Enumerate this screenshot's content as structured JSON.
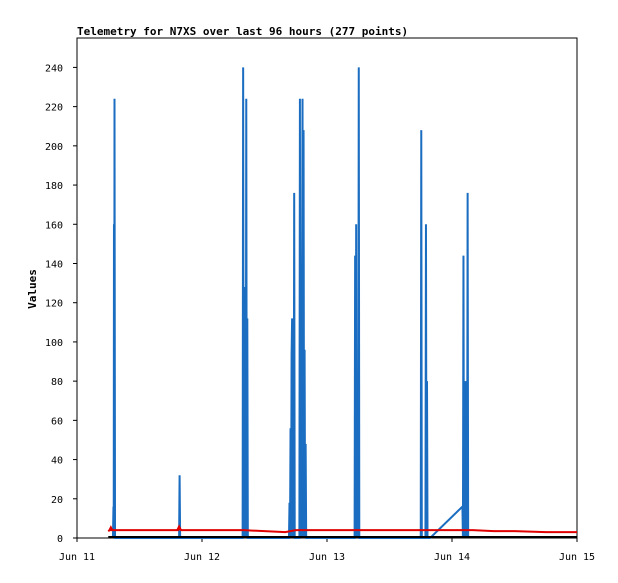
{
  "chart_data": {
    "type": "line",
    "title": "Telemetry for N7XS over last 96 hours (277 points)",
    "xlabel": "",
    "ylabel": "Values",
    "x_range": [
      "Jun 11 00:00",
      "Jun 15 00:00"
    ],
    "ylim": [
      0,
      255
    ],
    "y_ticks": [
      0,
      20,
      40,
      60,
      80,
      100,
      120,
      140,
      160,
      180,
      200,
      220,
      240
    ],
    "x_ticks": [
      {
        "label": "Jun 11",
        "t": 0
      },
      {
        "label": "Jun 12",
        "t": 24
      },
      {
        "label": "Jun 13",
        "t": 48
      },
      {
        "label": "Jun 14",
        "t": 72
      },
      {
        "label": "Jun 15",
        "t": 96
      }
    ],
    "grid": false,
    "legend": "none",
    "colors": {
      "blue_series": "#1b6dc1",
      "red_series": "#e00000",
      "black_series": "#000000"
    },
    "series": [
      {
        "color": "blue_series",
        "points": [
          [
            6.9,
            0
          ],
          [
            7.0,
            16
          ],
          [
            7.05,
            0
          ],
          [
            7.1,
            160
          ],
          [
            7.15,
            0
          ],
          [
            7.2,
            224
          ],
          [
            7.3,
            0
          ],
          [
            19.6,
            0
          ],
          [
            19.7,
            32
          ],
          [
            19.8,
            0
          ],
          [
            31.8,
            0
          ],
          [
            31.9,
            240
          ],
          [
            32.0,
            0
          ],
          [
            32.1,
            96
          ],
          [
            32.2,
            0
          ],
          [
            32.3,
            128
          ],
          [
            32.4,
            0
          ],
          [
            32.5,
            224
          ],
          [
            32.6,
            0
          ],
          [
            32.7,
            112
          ],
          [
            32.8,
            0
          ],
          [
            40.7,
            0
          ],
          [
            40.8,
            18
          ],
          [
            40.9,
            0
          ],
          [
            41.0,
            56
          ],
          [
            41.1,
            0
          ],
          [
            41.2,
            93
          ],
          [
            41.3,
            112
          ],
          [
            41.4,
            0
          ],
          [
            41.5,
            112
          ],
          [
            41.6,
            0
          ],
          [
            41.7,
            176
          ],
          [
            41.8,
            0
          ],
          [
            42.7,
            0
          ],
          [
            42.8,
            224
          ],
          [
            42.9,
            0
          ],
          [
            43.0,
            112
          ],
          [
            43.1,
            0
          ],
          [
            43.3,
            224
          ],
          [
            43.4,
            0
          ],
          [
            43.5,
            208
          ],
          [
            43.6,
            0
          ],
          [
            43.7,
            96
          ],
          [
            43.8,
            0
          ],
          [
            43.9,
            48
          ],
          [
            44.0,
            0
          ],
          [
            53.3,
            0
          ],
          [
            53.4,
            144
          ],
          [
            53.5,
            0
          ],
          [
            53.6,
            160
          ],
          [
            53.7,
            0
          ],
          [
            53.75,
            80
          ],
          [
            53.8,
            0
          ],
          [
            53.9,
            32
          ],
          [
            54.0,
            0
          ],
          [
            54.1,
            240
          ],
          [
            54.2,
            0
          ],
          [
            66.0,
            0
          ],
          [
            66.1,
            208
          ],
          [
            66.2,
            0
          ],
          [
            66.9,
            0
          ],
          [
            67.0,
            160
          ],
          [
            67.1,
            0
          ],
          [
            67.2,
            80
          ],
          [
            67.3,
            0
          ],
          [
            67.8,
            0
          ],
          [
            74.0,
            16
          ],
          [
            74.1,
            0
          ],
          [
            74.2,
            144
          ],
          [
            74.3,
            0
          ],
          [
            74.4,
            48
          ],
          [
            74.5,
            0
          ],
          [
            74.6,
            80
          ],
          [
            74.7,
            0
          ],
          [
            74.8,
            40
          ],
          [
            74.9,
            0
          ],
          [
            75.0,
            176
          ],
          [
            75.1,
            0
          ]
        ]
      },
      {
        "color": "red_series",
        "points": [
          [
            6.0,
            3.5
          ],
          [
            6.5,
            4.5
          ],
          [
            7.0,
            4
          ],
          [
            12.0,
            4
          ],
          [
            19.4,
            4
          ],
          [
            19.6,
            5
          ],
          [
            20.0,
            4
          ],
          [
            32.0,
            4
          ],
          [
            36.0,
            3.5
          ],
          [
            40.0,
            3
          ],
          [
            42.0,
            4
          ],
          [
            54.0,
            4
          ],
          [
            66.0,
            4
          ],
          [
            69.0,
            4
          ],
          [
            76.0,
            4
          ],
          [
            80.0,
            3.5
          ],
          [
            84.0,
            3.5
          ],
          [
            90.0,
            3
          ],
          [
            96.0,
            3
          ]
        ]
      },
      {
        "color": "black_series",
        "points": [
          [
            6.0,
            0.5
          ],
          [
            96.0,
            0.5
          ]
        ]
      }
    ]
  }
}
